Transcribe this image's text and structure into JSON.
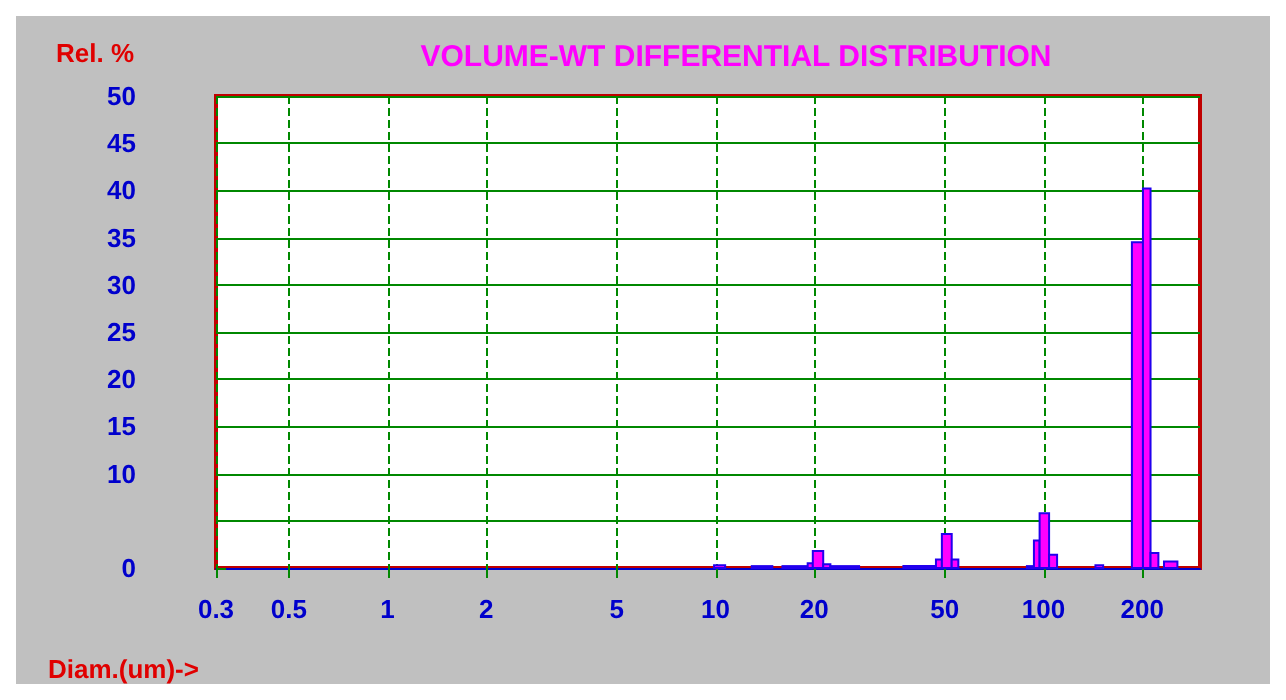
{
  "chart_data": {
    "type": "histogram",
    "title": "VOLUME-WT DIFFERENTIAL DISTRIBUTION",
    "xlabel": "Diam.(um)->",
    "ylabel": "Rel. %",
    "color": "#ff00ff",
    "bins": [
      9.9,
      10.7,
      12.9,
      14.9,
      16,
      19.1,
      19.8,
      21.3,
      22.4,
      27.4,
      37.4,
      47,
      49,
      52.5,
      55,
      89,
      93.5,
      97.3,
      104,
      110,
      144,
      152,
      186,
      201,
      212,
      224,
      233,
      256
    ],
    "values": [
      0.3,
      0,
      0.2,
      0,
      0.2,
      0.5,
      1.8,
      0.4,
      0.2,
      0,
      0.2,
      0.9,
      3.6,
      0.9,
      0,
      0.2,
      2.9,
      5.8,
      1.4,
      0,
      0.3,
      0,
      34.5,
      40.2,
      1.6,
      0,
      0.7
    ],
    "log": "x",
    "xlim": [
      0.3,
      300
    ],
    "xticks": [
      0.3,
      0.5,
      1,
      2,
      5,
      10,
      20,
      50,
      100,
      200
    ],
    "ylim": [
      0,
      50
    ],
    "yticks": [
      0,
      {
        "value": 5,
        "label": null
      },
      10,
      15,
      20,
      25,
      30,
      35,
      40,
      45,
      50
    ],
    "grid": true
  }
}
